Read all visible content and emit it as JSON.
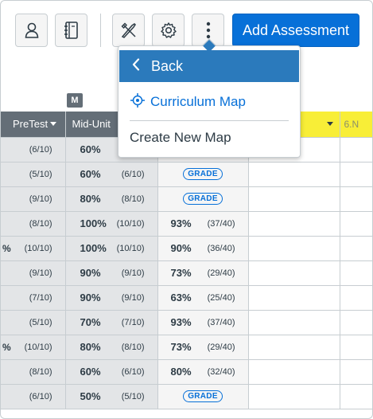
{
  "toolbar": {
    "add_assessment_label": "Add Assessment"
  },
  "icons": {
    "user": "user-icon",
    "notebook": "notebook-icon",
    "tools": "tools-icon",
    "gear": "gear-icon",
    "more": "more-vertical-icon"
  },
  "colors": {
    "primary": "#0770d8",
    "menu_highlight": "#2b7abc",
    "header_gray": "#646e77",
    "header_yellow": "#f8ee37"
  },
  "menu": {
    "back_label": "Back",
    "curriculum_map_label": "Curriculum Map",
    "create_new_map_label": "Create New Map"
  },
  "grid": {
    "marker_badge": "M",
    "headers": {
      "pretest": "PreTest",
      "midunit": "Mid-Unit",
      "next": "6.N"
    },
    "rows": [
      {
        "c1_pre": "",
        "c1": "(6/10)",
        "c2p": "60%",
        "c2f": "",
        "c3p": "",
        "c3f": "",
        "grade": false
      },
      {
        "c1_pre": "",
        "c1": "(5/10)",
        "c2p": "60%",
        "c2f": "(6/10)",
        "c3p": "",
        "c3f": "",
        "grade": true
      },
      {
        "c1_pre": "",
        "c1": "(9/10)",
        "c2p": "80%",
        "c2f": "(8/10)",
        "c3p": "",
        "c3f": "",
        "grade": true
      },
      {
        "c1_pre": "",
        "c1": "(8/10)",
        "c2p": "100%",
        "c2f": "(10/10)",
        "c3p": "93%",
        "c3f": "(37/40)",
        "grade": false
      },
      {
        "c1_pre": "%",
        "c1": "(10/10)",
        "c2p": "100%",
        "c2f": "(10/10)",
        "c3p": "90%",
        "c3f": "(36/40)",
        "grade": false
      },
      {
        "c1_pre": "",
        "c1": "(9/10)",
        "c2p": "90%",
        "c2f": "(9/10)",
        "c3p": "73%",
        "c3f": "(29/40)",
        "grade": false
      },
      {
        "c1_pre": "",
        "c1": "(7/10)",
        "c2p": "90%",
        "c2f": "(9/10)",
        "c3p": "63%",
        "c3f": "(25/40)",
        "grade": false
      },
      {
        "c1_pre": "",
        "c1": "(5/10)",
        "c2p": "70%",
        "c2f": "(7/10)",
        "c3p": "93%",
        "c3f": "(37/40)",
        "grade": false
      },
      {
        "c1_pre": "%",
        "c1": "(10/10)",
        "c2p": "80%",
        "c2f": "(8/10)",
        "c3p": "73%",
        "c3f": "(29/40)",
        "grade": false
      },
      {
        "c1_pre": "",
        "c1": "(8/10)",
        "c2p": "60%",
        "c2f": "(6/10)",
        "c3p": "80%",
        "c3f": "(32/40)",
        "grade": false
      },
      {
        "c1_pre": "",
        "c1": "(6/10)",
        "c2p": "50%",
        "c2f": "(5/10)",
        "c3p": "",
        "c3f": "",
        "grade": true
      }
    ],
    "grade_label": "GRADE"
  }
}
